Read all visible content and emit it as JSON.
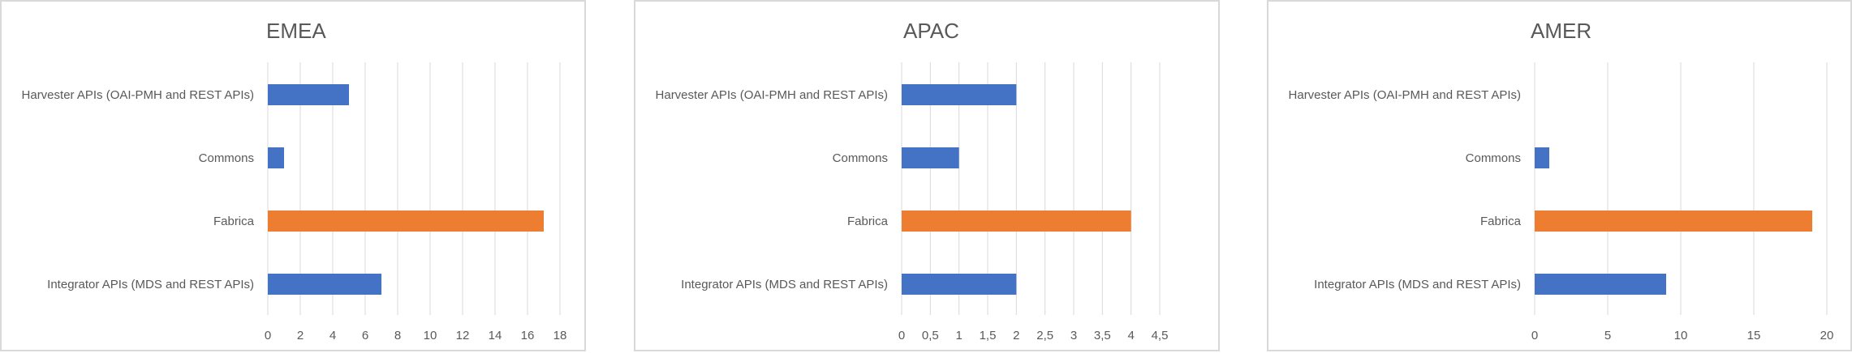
{
  "chart_data": [
    {
      "type": "bar",
      "orientation": "horizontal",
      "title": "EMEA",
      "categories": [
        "Harvester APIs (OAI-PMH and REST APIs)",
        "Commons",
        "Fabrica",
        "Integrator APIs (MDS and REST APIs)"
      ],
      "values": [
        5,
        1,
        17,
        7
      ],
      "xlim": [
        0,
        18
      ],
      "ticks": [
        0,
        2,
        4,
        6,
        8,
        10,
        12,
        14,
        16,
        18
      ],
      "tick_labels": [
        "0",
        "2",
        "4",
        "6",
        "8",
        "10",
        "12",
        "14",
        "16",
        "18"
      ],
      "bar_colors": [
        "#4472c4",
        "#4472c4",
        "#ed7d31",
        "#4472c4"
      ],
      "grid": true
    },
    {
      "type": "bar",
      "orientation": "horizontal",
      "title": "APAC",
      "categories": [
        "Harvester APIs (OAI-PMH and REST APIs)",
        "Commons",
        "Fabrica",
        "Integrator APIs (MDS and REST APIs)"
      ],
      "values": [
        2,
        1,
        4,
        2
      ],
      "xlim": [
        0,
        4.5
      ],
      "ticks": [
        0,
        0.5,
        1,
        1.5,
        2,
        2.5,
        3,
        3.5,
        4,
        4.5
      ],
      "tick_labels": [
        "0",
        "0,5",
        "1",
        "1,5",
        "2",
        "2,5",
        "3",
        "3,5",
        "4",
        "4,5"
      ],
      "bar_colors": [
        "#4472c4",
        "#4472c4",
        "#ed7d31",
        "#4472c4"
      ],
      "grid": true
    },
    {
      "type": "bar",
      "orientation": "horizontal",
      "title": "AMER",
      "categories": [
        "Harvester APIs (OAI-PMH and REST APIs)",
        "Commons",
        "Fabrica",
        "Integrator APIs (MDS and REST APIs)"
      ],
      "values": [
        0,
        1,
        19,
        9
      ],
      "xlim": [
        0,
        20
      ],
      "ticks": [
        0,
        5,
        10,
        15,
        20
      ],
      "tick_labels": [
        "0",
        "5",
        "10",
        "15",
        "20"
      ],
      "bar_colors": [
        "#4472c4",
        "#4472c4",
        "#ed7d31",
        "#4472c4"
      ],
      "grid": true
    }
  ]
}
